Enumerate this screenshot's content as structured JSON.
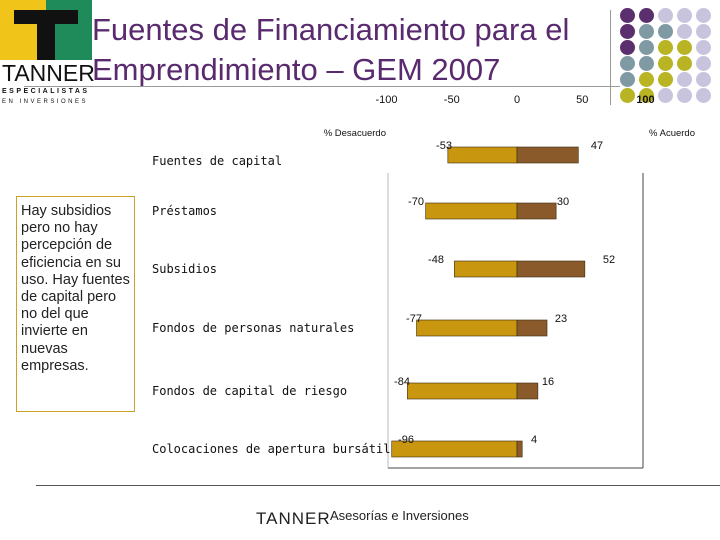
{
  "slide": {
    "title_line1": "Fuentes de Financiamiento para el",
    "title_line2": "Emprendimiento – GEM 2007",
    "logo_word": "TANNER",
    "logo_sub1": "ESPECIALISTAS",
    "logo_sub2": "EN INVERSIONES",
    "footer_brand": "TANNER",
    "footer_sub": "Asesorías e Inversiones",
    "side_note": "Hay subsidios pero no hay percepción de eficiencia en su uso. Hay fuentes de capital pero no del que invierte en nuevas empresas.",
    "colors": {
      "title": "#5a2a6e",
      "disagree_bar": "#c9960f",
      "agree_bar": "#8a5a2b",
      "purple": "#5b2e6e",
      "teal": "#7f9aa3",
      "olive": "#b9b423",
      "lavender": "#c9c4de"
    }
  },
  "chart_data": {
    "type": "bar",
    "orientation": "horizontal-diverging",
    "x_ticks": [
      "-100",
      "-50",
      "0",
      "50",
      "100"
    ],
    "xlim": [
      -100,
      100
    ],
    "axis_left_label": "% Desacuerdo",
    "axis_right_label": "% Acuerdo",
    "header_label": "Fuentes de capital",
    "categories": [
      "",
      "Préstamos",
      "Subsidios",
      "Fondos de personas naturales",
      "Fondos de capital de riesgo",
      "Colocaciones de apertura bursátil"
    ],
    "series": [
      {
        "name": "% Desacuerdo",
        "values": [
          -53,
          -70,
          -48,
          -77,
          -84,
          -96
        ]
      },
      {
        "name": "% Acuerdo",
        "values": [
          47,
          30,
          52,
          23,
          16,
          4
        ]
      }
    ],
    "disagree_labels": [
      "-53",
      "-70",
      "-48",
      "-77",
      "-84",
      "-96"
    ],
    "agree_labels": [
      "47",
      "30",
      "52",
      "23",
      "16",
      "4"
    ]
  }
}
